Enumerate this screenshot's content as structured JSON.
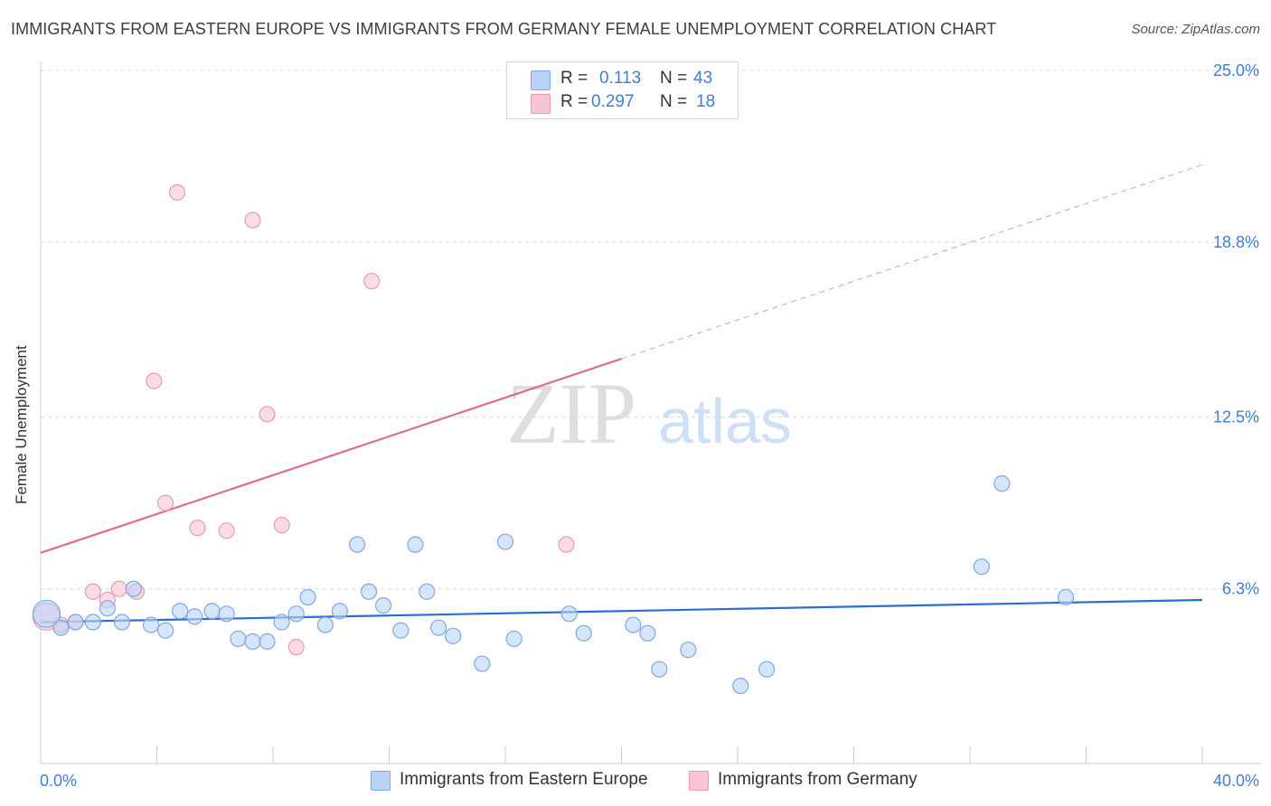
{
  "header": {
    "title": "IMMIGRANTS FROM EASTERN EUROPE VS IMMIGRANTS FROM GERMANY FEMALE UNEMPLOYMENT CORRELATION CHART",
    "source": "Source: ZipAtlas.com"
  },
  "legend": {
    "rows": [
      {
        "r_label": "R =",
        "r_value": "0.113",
        "n_label": "N =",
        "n_value": "43"
      },
      {
        "r_label": "R =",
        "r_value": "0.297",
        "n_label": "N =",
        "n_value": "18"
      }
    ]
  },
  "watermark": {
    "zip": "ZIP",
    "atlas": "atlas"
  },
  "colors": {
    "blue_fill": "#b9d3f6",
    "blue_stroke": "#7ea9e3",
    "blue_line": "#2a6fd0",
    "pink_fill": "#f9c4d3",
    "pink_stroke": "#ec9ab2",
    "pink_line": "#e06b91",
    "tick_text": "#3f7ed6",
    "grid": "#dcdcdc"
  },
  "chart_data": {
    "type": "scatter",
    "title": "IMMIGRANTS FROM EASTERN EUROPE VS IMMIGRANTS FROM GERMANY FEMALE UNEMPLOYMENT CORRELATION CHART",
    "xlabel": "",
    "ylabel": "Female Unemployment",
    "xlim": [
      0,
      40
    ],
    "ylim": [
      0,
      25
    ],
    "x_tick_labels": [
      "0.0%",
      "40.0%"
    ],
    "y_ticks": [
      6.3,
      12.5,
      18.8,
      25.0
    ],
    "y_tick_labels": [
      "6.3%",
      "12.5%",
      "18.8%",
      "25.0%"
    ],
    "grid": "horizontal dashed",
    "legend_placement": "top-center",
    "series": [
      {
        "name": "Immigrants from Eastern Europe",
        "R": 0.113,
        "N": 43,
        "trend": {
          "x": [
            0,
            40
          ],
          "y": [
            5.1,
            5.9
          ]
        },
        "points": [
          [
            0.2,
            5.4
          ],
          [
            0.7,
            4.9
          ],
          [
            1.2,
            5.1
          ],
          [
            1.8,
            5.1
          ],
          [
            2.3,
            5.6
          ],
          [
            2.8,
            5.1
          ],
          [
            3.2,
            6.3
          ],
          [
            3.8,
            5.0
          ],
          [
            4.3,
            4.8
          ],
          [
            4.8,
            5.5
          ],
          [
            5.3,
            5.3
          ],
          [
            5.9,
            5.5
          ],
          [
            6.4,
            5.4
          ],
          [
            6.8,
            4.5
          ],
          [
            7.3,
            4.4
          ],
          [
            7.8,
            4.4
          ],
          [
            8.3,
            5.1
          ],
          [
            8.8,
            5.4
          ],
          [
            9.2,
            6.0
          ],
          [
            9.8,
            5.0
          ],
          [
            10.3,
            5.5
          ],
          [
            10.9,
            7.9
          ],
          [
            11.3,
            6.2
          ],
          [
            11.8,
            5.7
          ],
          [
            12.4,
            4.8
          ],
          [
            12.9,
            7.9
          ],
          [
            13.3,
            6.2
          ],
          [
            13.7,
            4.9
          ],
          [
            14.2,
            4.6
          ],
          [
            15.2,
            3.6
          ],
          [
            16.0,
            8.0
          ],
          [
            16.3,
            4.5
          ],
          [
            18.2,
            5.4
          ],
          [
            18.7,
            4.7
          ],
          [
            20.4,
            5.0
          ],
          [
            20.9,
            4.7
          ],
          [
            21.3,
            3.4
          ],
          [
            22.3,
            4.1
          ],
          [
            24.1,
            2.8
          ],
          [
            25.0,
            3.4
          ],
          [
            32.4,
            7.1
          ],
          [
            33.1,
            10.1
          ],
          [
            35.3,
            6.0
          ]
        ]
      },
      {
        "name": "Immigrants from Germany",
        "R": 0.297,
        "N": 18,
        "trend_solid": {
          "x": [
            0,
            20
          ],
          "y": [
            7.6,
            14.6
          ]
        },
        "trend_dashed": {
          "x": [
            20,
            40
          ],
          "y": [
            14.6,
            21.6
          ]
        },
        "points": [
          [
            0.2,
            5.3
          ],
          [
            0.7,
            5.0
          ],
          [
            1.2,
            5.1
          ],
          [
            1.8,
            6.2
          ],
          [
            2.3,
            5.9
          ],
          [
            2.7,
            6.3
          ],
          [
            3.3,
            6.2
          ],
          [
            3.9,
            13.8
          ],
          [
            4.3,
            9.4
          ],
          [
            4.7,
            20.6
          ],
          [
            5.4,
            8.5
          ],
          [
            6.4,
            8.4
          ],
          [
            7.3,
            19.6
          ],
          [
            7.8,
            12.6
          ],
          [
            8.3,
            8.6
          ],
          [
            8.8,
            4.2
          ],
          [
            11.4,
            17.4
          ],
          [
            18.1,
            7.9
          ]
        ]
      }
    ]
  },
  "bottom_legend": {
    "items": [
      {
        "label": "Immigrants from Eastern Europe"
      },
      {
        "label": "Immigrants from Germany"
      }
    ]
  }
}
